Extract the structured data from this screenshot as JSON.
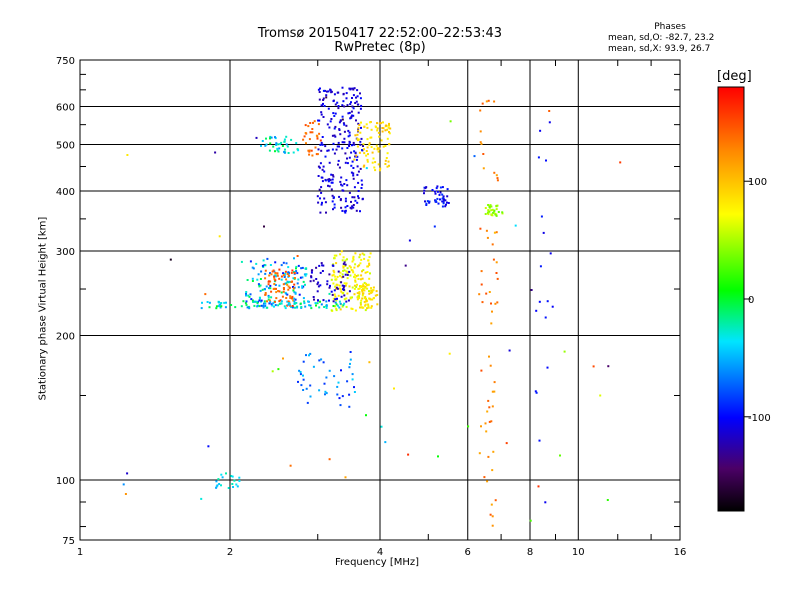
{
  "title_line1": "Tromsø 20150417 22:52:00–22:53:43",
  "title_line2": "RwPretec (8p)",
  "stats": {
    "header": "Phases",
    "o_line": "mean, sd,O: -82.7, 23.2",
    "x_line": "mean, sd,X:  93.9, 26.7"
  },
  "colorbar": {
    "label": "[deg]",
    "ticks": [
      "100",
      "0",
      "-100"
    ],
    "tick_values": [
      100,
      0,
      -100
    ],
    "range": [
      -180,
      180
    ]
  },
  "chart_data": {
    "type": "scatter",
    "xlabel": "Frequency [MHz]",
    "ylabel": "Stationary phase Virtual Height [km]",
    "x_scale": "log",
    "y_scale": "log",
    "xlim": [
      1,
      16
    ],
    "ylim": [
      75,
      750
    ],
    "x_ticks": [
      {
        "v": 1,
        "label": "1"
      },
      {
        "v": 2,
        "label": "2"
      },
      {
        "v": 4,
        "label": "4"
      },
      {
        "v": 6,
        "label": "6"
      },
      {
        "v": 8,
        "label": "8"
      },
      {
        "v": 10,
        "label": "10"
      },
      {
        "v": 16,
        "label": "16"
      }
    ],
    "y_ticks": [
      {
        "v": 75,
        "label": "75"
      },
      {
        "v": 100,
        "label": "100"
      },
      {
        "v": 200,
        "label": "200"
      },
      {
        "v": 300,
        "label": "300"
      },
      {
        "v": 400,
        "label": "400"
      },
      {
        "v": 500,
        "label": "500"
      },
      {
        "v": 600,
        "label": "600"
      },
      {
        "v": 750,
        "label": "750"
      }
    ],
    "grid": true,
    "clusters": [
      {
        "x": [
          2.15,
          2.85
        ],
        "y": [
          228,
          290
        ],
        "n": 140,
        "phase": -50,
        "spread": 50
      },
      {
        "x": [
          2.35,
          2.7
        ],
        "y": [
          230,
          275
        ],
        "n": 70,
        "phase": 140,
        "spread": 20
      },
      {
        "x": [
          3.2,
          3.85
        ],
        "y": [
          225,
          300
        ],
        "n": 160,
        "phase": 75,
        "spread": 20
      },
      {
        "x": [
          2.9,
          3.5
        ],
        "y": [
          235,
          285
        ],
        "n": 60,
        "phase": -115,
        "spread": 15
      },
      {
        "x": [
          3.6,
          3.95
        ],
        "y": [
          228,
          255
        ],
        "n": 50,
        "phase": 85,
        "spread": 10
      },
      {
        "x": [
          1.75,
          3.4
        ],
        "y": [
          228,
          236
        ],
        "n": 90,
        "phase": -30,
        "spread": 35
      },
      {
        "x": [
          3.0,
          3.7
        ],
        "y": [
          360,
          660
        ],
        "n": 260,
        "phase": -110,
        "spread": 15
      },
      {
        "x": [
          3.55,
          4.2
        ],
        "y": [
          440,
          560
        ],
        "n": 90,
        "phase": 90,
        "spread": 15
      },
      {
        "x": [
          2.3,
          2.75
        ],
        "y": [
          480,
          520
        ],
        "n": 40,
        "phase": -30,
        "spread": 30
      },
      {
        "x": [
          2.8,
          3.05
        ],
        "y": [
          470,
          560
        ],
        "n": 30,
        "phase": 140,
        "spread": 15
      },
      {
        "x": [
          4.9,
          5.5
        ],
        "y": [
          370,
          410
        ],
        "n": 45,
        "phase": -100,
        "spread": 15
      },
      {
        "x": [
          6.5,
          7.1
        ],
        "y": [
          355,
          375
        ],
        "n": 35,
        "phase": 45,
        "spread": 15
      },
      {
        "x": [
          2.75,
          3.6
        ],
        "y": [
          140,
          185
        ],
        "n": 45,
        "phase": -70,
        "spread": 30
      },
      {
        "x": [
          1.85,
          2.1
        ],
        "y": [
          96,
          104
        ],
        "n": 20,
        "phase": -40,
        "spread": 20
      },
      {
        "x": [
          6.3,
          6.9
        ],
        "y": [
          80,
          620
        ],
        "n": 60,
        "phase": 130,
        "spread": 20
      },
      {
        "x": [
          8.2,
          8.9
        ],
        "y": [
          85,
          560
        ],
        "n": 18,
        "phase": -100,
        "spread": 10
      },
      {
        "x": [
          1.1,
          13.0
        ],
        "y": [
          80,
          650
        ],
        "n": 55,
        "phase": 0,
        "spread": 170
      }
    ]
  }
}
